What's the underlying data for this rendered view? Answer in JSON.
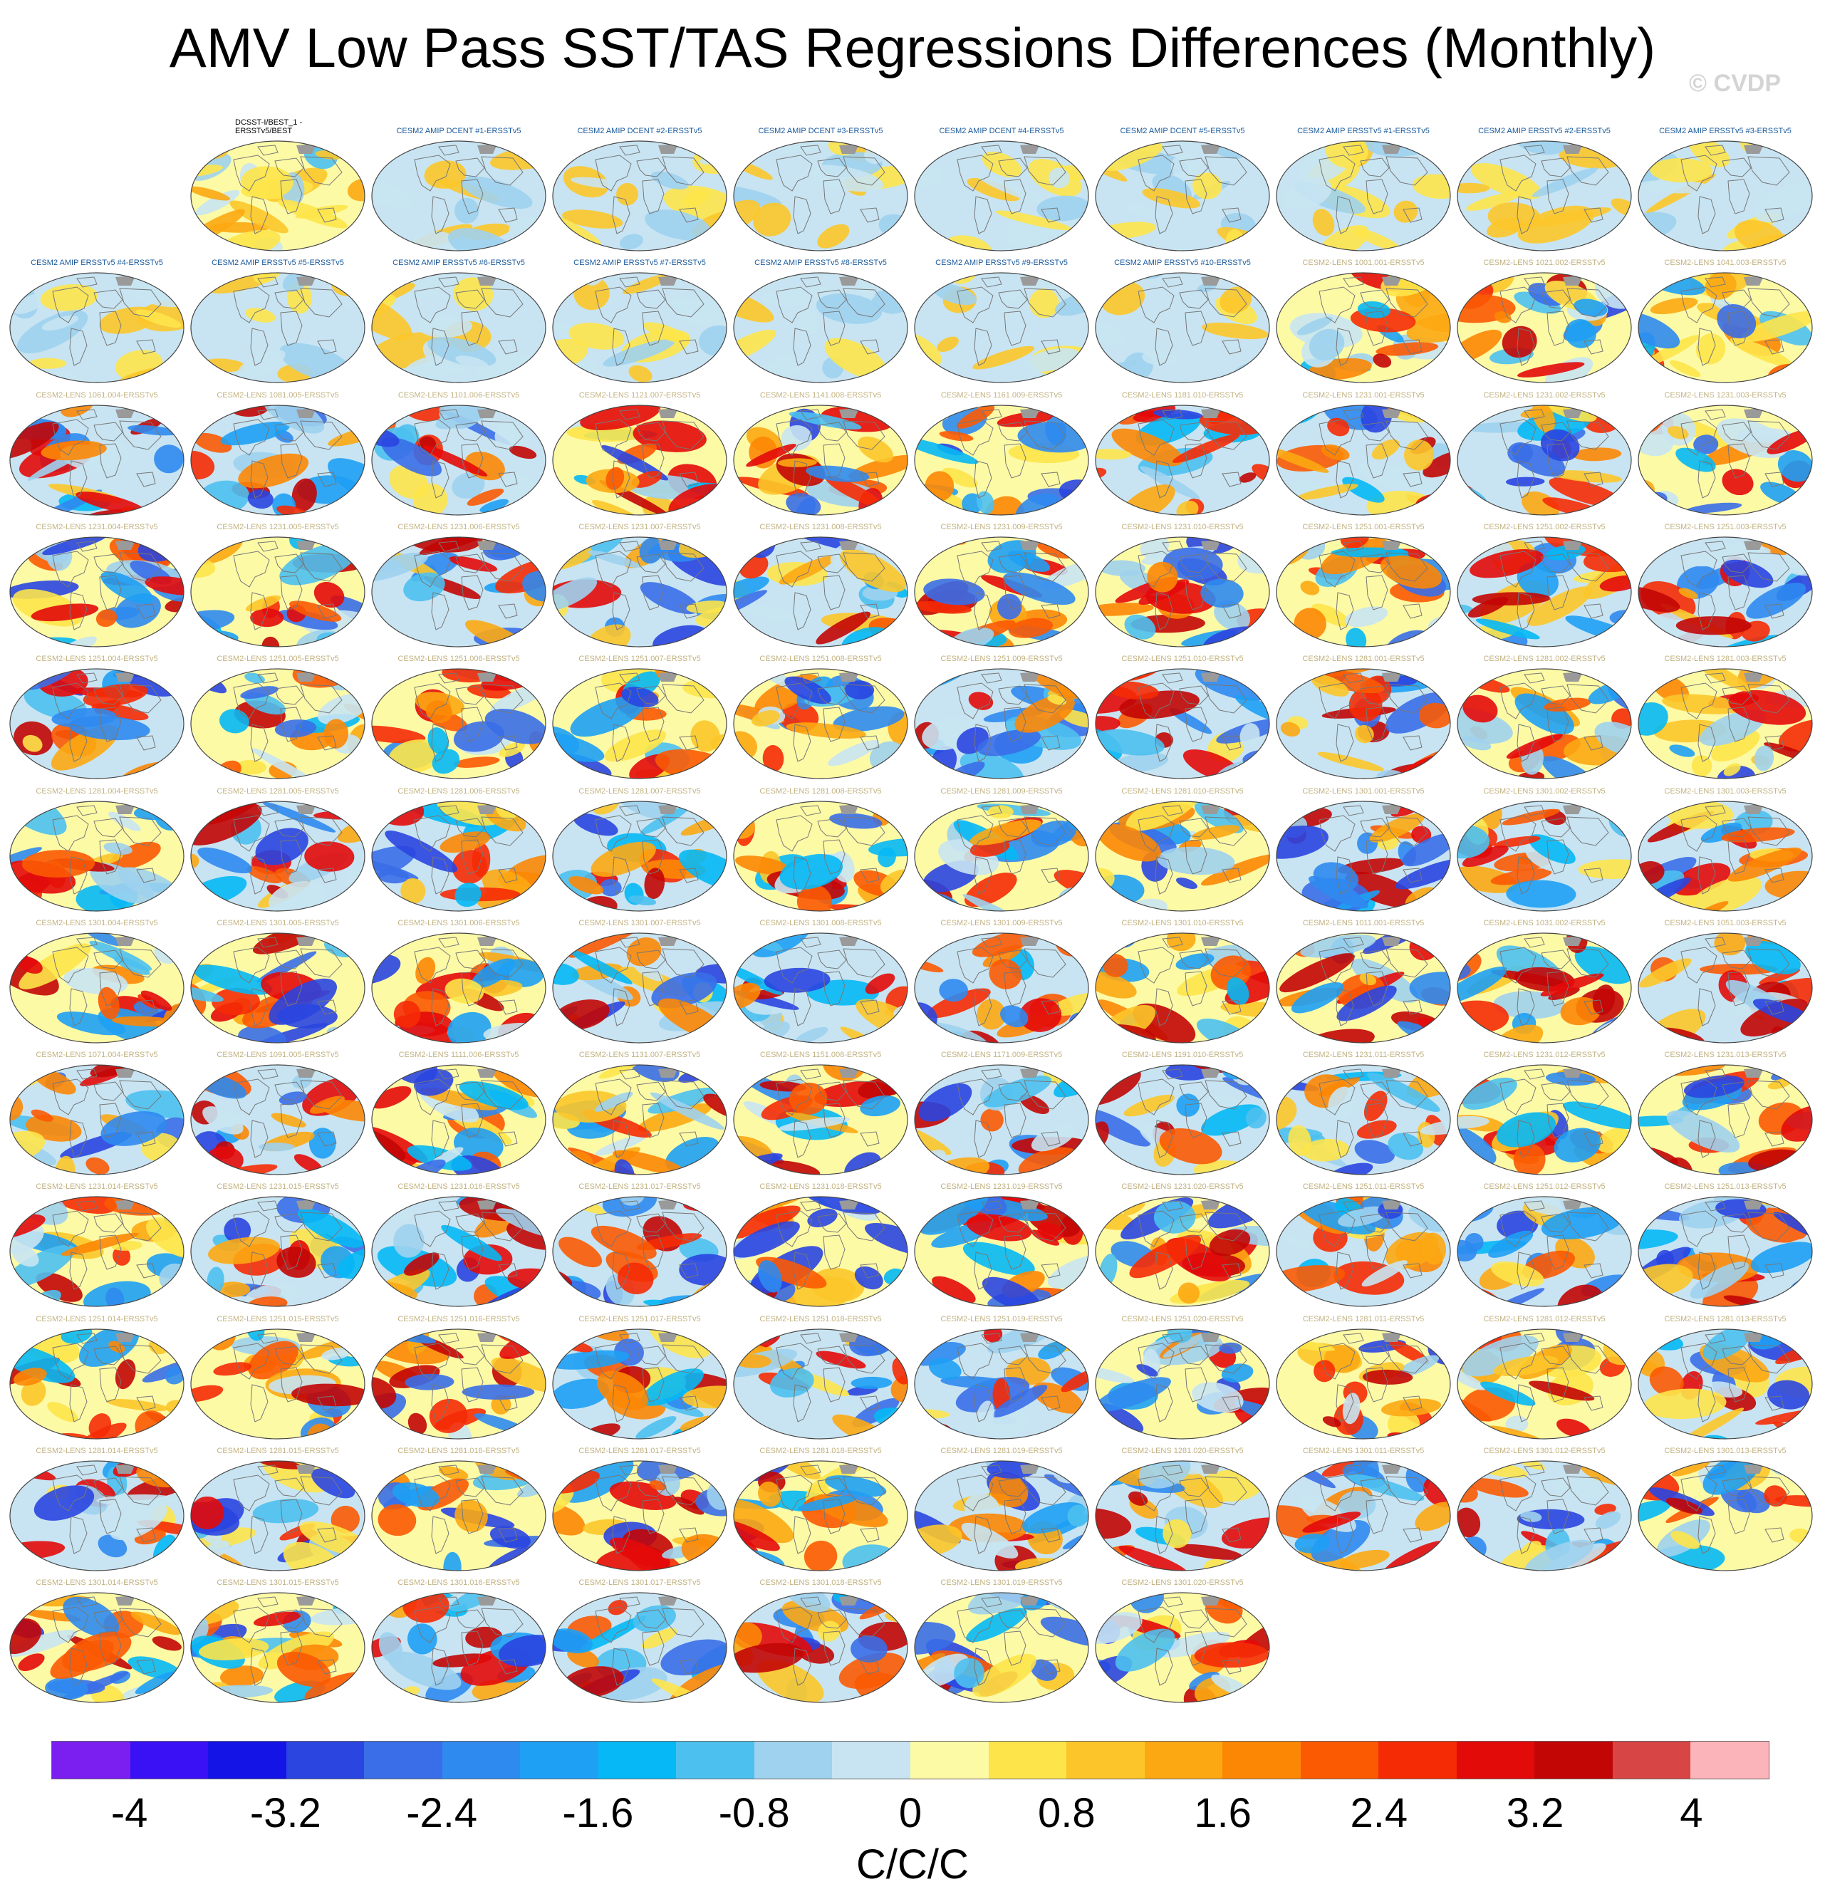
{
  "title": "AMV Low Pass SST/TAS Regressions Differences (Monthly)",
  "watermark": "© CVDP",
  "colorbar": {
    "units": "C/C/C",
    "tick_labels": [
      "-4",
      "-3.2",
      "-2.4",
      "-1.6",
      "-0.8",
      "0",
      "0.8",
      "1.6",
      "2.4",
      "3.2",
      "4"
    ],
    "colors": [
      "#7a1fef",
      "#3a10f5",
      "#1414e6",
      "#2a45e0",
      "#3a6ee8",
      "#2f8af0",
      "#1ea0f4",
      "#06b8f5",
      "#4cc0ef",
      "#9fd2ee",
      "#c8e4f2",
      "#fdfaa6",
      "#fde44a",
      "#fcc62a",
      "#fca813",
      "#fc8705",
      "#fb5a03",
      "#f52b05",
      "#e30a0a",
      "#c20606",
      "#d84545",
      "#fbb4b9"
    ]
  },
  "label_colors": {
    "obs": "#000000",
    "amip": "#1a5a9c",
    "lens": "#c2b280"
  },
  "panels": [
    {
      "label": "DCSST-I/BEST_1 - ERSSTv5/BEST",
      "kind": "obs"
    },
    {
      "label": "CESM2 AMIP DCENT #1-ERSSTv5",
      "kind": "amip"
    },
    {
      "label": "CESM2 AMIP DCENT #2-ERSSTv5",
      "kind": "amip"
    },
    {
      "label": "CESM2 AMIP DCENT #3-ERSSTv5",
      "kind": "amip"
    },
    {
      "label": "CESM2 AMIP DCENT #4-ERSSTv5",
      "kind": "amip"
    },
    {
      "label": "CESM2 AMIP DCENT #5-ERSSTv5",
      "kind": "amip"
    },
    {
      "label": "CESM2 AMIP ERSSTv5 #1-ERSSTv5",
      "kind": "amip"
    },
    {
      "label": "CESM2 AMIP ERSSTv5 #2-ERSSTv5",
      "kind": "amip"
    },
    {
      "label": "CESM2 AMIP ERSSTv5 #3-ERSSTv5",
      "kind": "amip"
    },
    {
      "label": "CESM2 AMIP ERSSTv5 #4-ERSSTv5",
      "kind": "amip"
    },
    {
      "label": "CESM2 AMIP ERSSTv5 #5-ERSSTv5",
      "kind": "amip"
    },
    {
      "label": "CESM2 AMIP ERSSTv5 #6-ERSSTv5",
      "kind": "amip"
    },
    {
      "label": "CESM2 AMIP ERSSTv5 #7-ERSSTv5",
      "kind": "amip"
    },
    {
      "label": "CESM2 AMIP ERSSTv5 #8-ERSSTv5",
      "kind": "amip"
    },
    {
      "label": "CESM2 AMIP ERSSTv5 #9-ERSSTv5",
      "kind": "amip"
    },
    {
      "label": "CESM2 AMIP ERSSTv5 #10-ERSSTv5",
      "kind": "amip"
    },
    {
      "label": "CESM2-LENS 1001.001-ERSSTv5",
      "kind": "lens"
    },
    {
      "label": "CESM2-LENS 1021.002-ERSSTv5",
      "kind": "lens"
    },
    {
      "label": "CESM2-LENS 1041.003-ERSSTv5",
      "kind": "lens"
    },
    {
      "label": "CESM2-LENS 1061.004-ERSSTv5",
      "kind": "lens"
    },
    {
      "label": "CESM2-LENS 1081.005-ERSSTv5",
      "kind": "lens"
    },
    {
      "label": "CESM2-LENS 1101.006-ERSSTv5",
      "kind": "lens"
    },
    {
      "label": "CESM2-LENS 1121.007-ERSSTv5",
      "kind": "lens"
    },
    {
      "label": "CESM2-LENS 1141.008-ERSSTv5",
      "kind": "lens"
    },
    {
      "label": "CESM2-LENS 1161.009-ERSSTv5",
      "kind": "lens"
    },
    {
      "label": "CESM2-LENS 1181.010-ERSSTv5",
      "kind": "lens"
    },
    {
      "label": "CESM2-LENS 1231.001-ERSSTv5",
      "kind": "lens"
    },
    {
      "label": "CESM2-LENS 1231.002-ERSSTv5",
      "kind": "lens"
    },
    {
      "label": "CESM2-LENS 1231.003-ERSSTv5",
      "kind": "lens"
    },
    {
      "label": "CESM2-LENS 1231.004-ERSSTv5",
      "kind": "lens"
    },
    {
      "label": "CESM2-LENS 1231.005-ERSSTv5",
      "kind": "lens"
    },
    {
      "label": "CESM2-LENS 1231.006-ERSSTv5",
      "kind": "lens"
    },
    {
      "label": "CESM2-LENS 1231.007-ERSSTv5",
      "kind": "lens"
    },
    {
      "label": "CESM2-LENS 1231.008-ERSSTv5",
      "kind": "lens"
    },
    {
      "label": "CESM2-LENS 1231.009-ERSSTv5",
      "kind": "lens"
    },
    {
      "label": "CESM2-LENS 1231.010-ERSSTv5",
      "kind": "lens"
    },
    {
      "label": "CESM2-LENS 1251.001-ERSSTv5",
      "kind": "lens"
    },
    {
      "label": "CESM2-LENS 1251.002-ERSSTv5",
      "kind": "lens"
    },
    {
      "label": "CESM2-LENS 1251.003-ERSSTv5",
      "kind": "lens"
    },
    {
      "label": "CESM2-LENS 1251.004-ERSSTv5",
      "kind": "lens"
    },
    {
      "label": "CESM2-LENS 1251.005-ERSSTv5",
      "kind": "lens"
    },
    {
      "label": "CESM2-LENS 1251.006-ERSSTv5",
      "kind": "lens"
    },
    {
      "label": "CESM2-LENS 1251.007-ERSSTv5",
      "kind": "lens"
    },
    {
      "label": "CESM2-LENS 1251.008-ERSSTv5",
      "kind": "lens"
    },
    {
      "label": "CESM2-LENS 1251.009-ERSSTv5",
      "kind": "lens"
    },
    {
      "label": "CESM2-LENS 1251.010-ERSSTv5",
      "kind": "lens"
    },
    {
      "label": "CESM2-LENS 1281.001-ERSSTv5",
      "kind": "lens"
    },
    {
      "label": "CESM2-LENS 1281.002-ERSSTv5",
      "kind": "lens"
    },
    {
      "label": "CESM2-LENS 1281.003-ERSSTv5",
      "kind": "lens"
    },
    {
      "label": "CESM2-LENS 1281.004-ERSSTv5",
      "kind": "lens"
    },
    {
      "label": "CESM2-LENS 1281.005-ERSSTv5",
      "kind": "lens"
    },
    {
      "label": "CESM2-LENS 1281.006-ERSSTv5",
      "kind": "lens"
    },
    {
      "label": "CESM2-LENS 1281.007-ERSSTv5",
      "kind": "lens"
    },
    {
      "label": "CESM2-LENS 1281.008-ERSSTv5",
      "kind": "lens"
    },
    {
      "label": "CESM2-LENS 1281.009-ERSSTv5",
      "kind": "lens"
    },
    {
      "label": "CESM2-LENS 1281.010-ERSSTv5",
      "kind": "lens"
    },
    {
      "label": "CESM2-LENS 1301.001-ERSSTv5",
      "kind": "lens"
    },
    {
      "label": "CESM2-LENS 1301.002-ERSSTv5",
      "kind": "lens"
    },
    {
      "label": "CESM2-LENS 1301.003-ERSSTv5",
      "kind": "lens"
    },
    {
      "label": "CESM2-LENS 1301.004-ERSSTv5",
      "kind": "lens"
    },
    {
      "label": "CESM2-LENS 1301.005-ERSSTv5",
      "kind": "lens"
    },
    {
      "label": "CESM2-LENS 1301.006-ERSSTv5",
      "kind": "lens"
    },
    {
      "label": "CESM2-LENS 1301.007-ERSSTv5",
      "kind": "lens"
    },
    {
      "label": "CESM2-LENS 1301.008-ERSSTv5",
      "kind": "lens"
    },
    {
      "label": "CESM2-LENS 1301.009-ERSSTv5",
      "kind": "lens"
    },
    {
      "label": "CESM2-LENS 1301.010-ERSSTv5",
      "kind": "lens"
    },
    {
      "label": "CESM2-LENS 1011.001-ERSSTv5",
      "kind": "lens"
    },
    {
      "label": "CESM2-LENS 1031.002-ERSSTv5",
      "kind": "lens"
    },
    {
      "label": "CESM2-LENS 1051.003-ERSSTv5",
      "kind": "lens"
    },
    {
      "label": "CESM2-LENS 1071.004-ERSSTv5",
      "kind": "lens"
    },
    {
      "label": "CESM2-LENS 1091.005-ERSSTv5",
      "kind": "lens"
    },
    {
      "label": "CESM2-LENS 1111.006-ERSSTv5",
      "kind": "lens"
    },
    {
      "label": "CESM2-LENS 1131.007-ERSSTv5",
      "kind": "lens"
    },
    {
      "label": "CESM2-LENS 1151.008-ERSSTv5",
      "kind": "lens"
    },
    {
      "label": "CESM2-LENS 1171.009-ERSSTv5",
      "kind": "lens"
    },
    {
      "label": "CESM2-LENS 1191.010-ERSSTv5",
      "kind": "lens"
    },
    {
      "label": "CESM2-LENS 1231.011-ERSSTv5",
      "kind": "lens"
    },
    {
      "label": "CESM2-LENS 1231.012-ERSSTv5",
      "kind": "lens"
    },
    {
      "label": "CESM2-LENS 1231.013-ERSSTv5",
      "kind": "lens"
    },
    {
      "label": "CESM2-LENS 1231.014-ERSSTv5",
      "kind": "lens"
    },
    {
      "label": "CESM2-LENS 1231.015-ERSSTv5",
      "kind": "lens"
    },
    {
      "label": "CESM2-LENS 1231.016-ERSSTv5",
      "kind": "lens"
    },
    {
      "label": "CESM2-LENS 1231.017-ERSSTv5",
      "kind": "lens"
    },
    {
      "label": "CESM2-LENS 1231.018-ERSSTv5",
      "kind": "lens"
    },
    {
      "label": "CESM2-LENS 1231.019-ERSSTv5",
      "kind": "lens"
    },
    {
      "label": "CESM2-LENS 1231.020-ERSSTv5",
      "kind": "lens"
    },
    {
      "label": "CESM2-LENS 1251.011-ERSSTv5",
      "kind": "lens"
    },
    {
      "label": "CESM2-LENS 1251.012-ERSSTv5",
      "kind": "lens"
    },
    {
      "label": "CESM2-LENS 1251.013-ERSSTv5",
      "kind": "lens"
    },
    {
      "label": "CESM2-LENS 1251.014-ERSSTv5",
      "kind": "lens"
    },
    {
      "label": "CESM2-LENS 1251.015-ERSSTv5",
      "kind": "lens"
    },
    {
      "label": "CESM2-LENS 1251.016-ERSSTv5",
      "kind": "lens"
    },
    {
      "label": "CESM2-LENS 1251.017-ERSSTv5",
      "kind": "lens"
    },
    {
      "label": "CESM2-LENS 1251.018-ERSSTv5",
      "kind": "lens"
    },
    {
      "label": "CESM2-LENS 1251.019-ERSSTv5",
      "kind": "lens"
    },
    {
      "label": "CESM2-LENS 1251.020-ERSSTv5",
      "kind": "lens"
    },
    {
      "label": "CESM2-LENS 1281.011-ERSSTv5",
      "kind": "lens"
    },
    {
      "label": "CESM2-LENS 1281.012-ERSSTv5",
      "kind": "lens"
    },
    {
      "label": "CESM2-LENS 1281.013-ERSSTv5",
      "kind": "lens"
    },
    {
      "label": "CESM2-LENS 1281.014-ERSSTv5",
      "kind": "lens"
    },
    {
      "label": "CESM2-LENS 1281.015-ERSSTv5",
      "kind": "lens"
    },
    {
      "label": "CESM2-LENS 1281.016-ERSSTv5",
      "kind": "lens"
    },
    {
      "label": "CESM2-LENS 1281.017-ERSSTv5",
      "kind": "lens"
    },
    {
      "label": "CESM2-LENS 1281.018-ERSSTv5",
      "kind": "lens"
    },
    {
      "label": "CESM2-LENS 1281.019-ERSSTv5",
      "kind": "lens"
    },
    {
      "label": "CESM2-LENS 1281.020-ERSSTv5",
      "kind": "lens"
    },
    {
      "label": "CESM2-LENS 1301.011-ERSSTv5",
      "kind": "lens"
    },
    {
      "label": "CESM2-LENS 1301.012-ERSSTv5",
      "kind": "lens"
    },
    {
      "label": "CESM2-LENS 1301.013-ERSSTv5",
      "kind": "lens"
    },
    {
      "label": "CESM2-LENS 1301.014-ERSSTv5",
      "kind": "lens"
    },
    {
      "label": "CESM2-LENS 1301.015-ERSSTv5",
      "kind": "lens"
    },
    {
      "label": "CESM2-LENS 1301.016-ERSSTv5",
      "kind": "lens"
    },
    {
      "label": "CESM2-LENS 1301.017-ERSSTv5",
      "kind": "lens"
    },
    {
      "label": "CESM2-LENS 1301.018-ERSSTv5",
      "kind": "lens"
    },
    {
      "label": "CESM2-LENS 1301.019-ERSSTv5",
      "kind": "lens"
    },
    {
      "label": "CESM2-LENS 1301.020-ERSSTv5",
      "kind": "lens"
    }
  ]
}
